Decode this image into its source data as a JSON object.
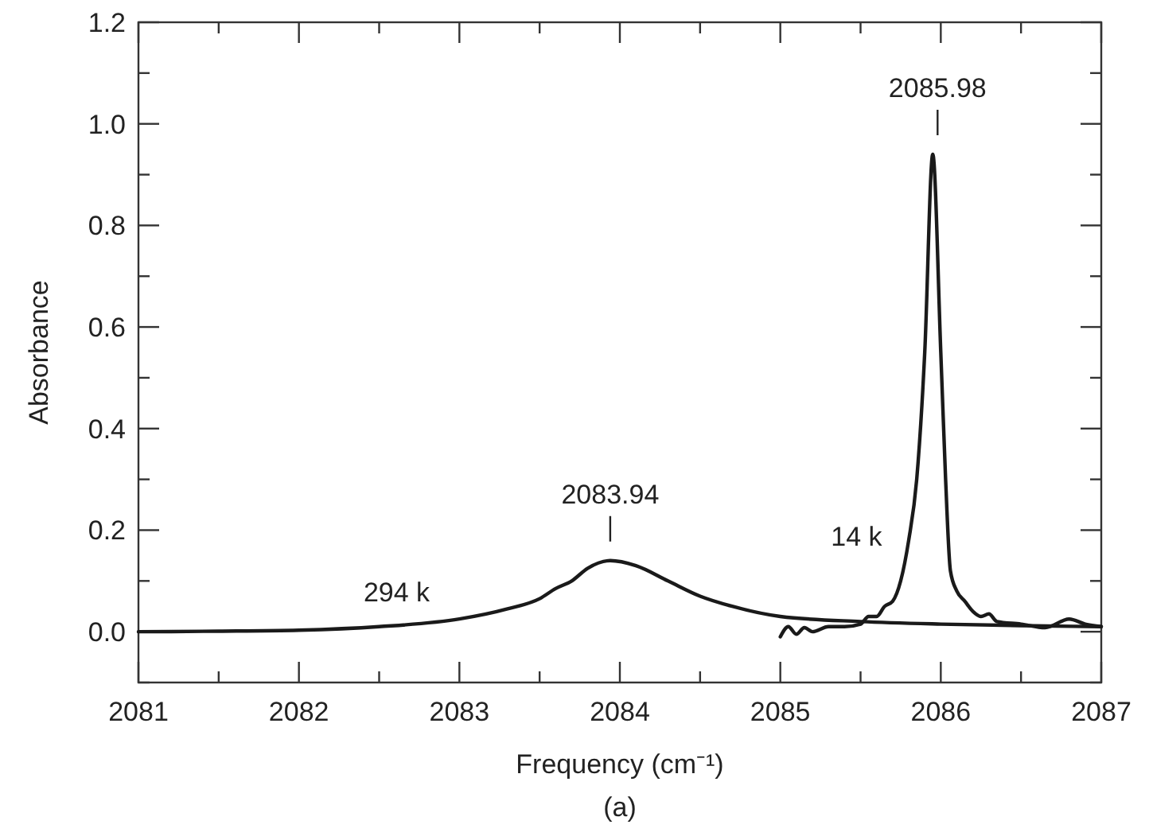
{
  "chart_data": {
    "type": "line",
    "xlabel": "Frequency (cm⁻¹)",
    "ylabel": "Absorbance",
    "xlim": [
      2081,
      2087
    ],
    "xticks": [
      2081,
      {
        "value": 2081.5,
        "label": null
      },
      2082,
      {
        "value": 2082.5,
        "label": null
      },
      2083,
      {
        "value": 2083.5,
        "label": null
      },
      2084,
      {
        "value": 2084.5,
        "label": null
      },
      2085,
      {
        "value": 2085.5,
        "label": null
      },
      2086,
      {
        "value": 2086.5,
        "label": null
      },
      2087
    ],
    "ylim": [
      -0.1,
      1.2
    ],
    "yticks": [
      {
        "value": -0.1,
        "label": null
      },
      "0.0",
      {
        "value": 0.1,
        "label": null
      },
      0.2,
      {
        "value": 0.3,
        "label": null
      },
      0.4,
      {
        "value": 0.5,
        "label": null
      },
      0.6,
      {
        "value": 0.7,
        "label": null
      },
      0.8,
      {
        "value": 0.9,
        "label": null
      },
      "1.0",
      {
        "value": 1.1,
        "label": null
      },
      1.2
    ],
    "marker": "none",
    "line_style": "solid",
    "series": [
      {
        "name": "294 k",
        "color": "#1a1a1a",
        "x": [
          2081,
          2081.5,
          2082,
          2082.5,
          2083,
          2083.3,
          2083.5,
          2083.6,
          2083.7,
          2083.8,
          2083.94,
          2084.1,
          2084.3,
          2084.5,
          2084.7,
          2085,
          2085.5,
          2086,
          2086.5,
          2087
        ],
        "values": [
          0.0,
          0.001,
          0.003,
          0.01,
          0.025,
          0.045,
          0.065,
          0.085,
          0.1,
          0.125,
          0.14,
          0.13,
          0.1,
          0.07,
          0.05,
          0.03,
          0.02,
          0.015,
          0.012,
          0.01
        ]
      },
      {
        "name": "14 k",
        "color": "#1a1a1a",
        "x": [
          2085,
          2085.05,
          2085.1,
          2085.15,
          2085.2,
          2085.3,
          2085.4,
          2085.5,
          2085.55,
          2085.6,
          2085.65,
          2085.7,
          2085.75,
          2085.8,
          2085.85,
          2085.9,
          2085.95,
          2086,
          2086.03,
          2086.06,
          2086.1,
          2086.15,
          2086.2,
          2086.25,
          2086.3,
          2086.35,
          2086.5,
          2086.65,
          2086.8,
          2086.9,
          2087
        ],
        "values": [
          -0.01,
          0.01,
          -0.005,
          0.008,
          0.0,
          0.01,
          0.01,
          0.015,
          0.03,
          0.03,
          0.05,
          0.06,
          0.1,
          0.18,
          0.3,
          0.55,
          0.94,
          0.55,
          0.3,
          0.12,
          0.08,
          0.06,
          0.04,
          0.03,
          0.035,
          0.02,
          0.015,
          0.008,
          0.025,
          0.015,
          0.01
        ]
      }
    ],
    "annotations": [
      {
        "text": "2083.94",
        "x": 2083.94,
        "y": 0.14
      },
      {
        "text": "2085.98",
        "x": 2085.98,
        "y": 0.94
      },
      "(a)"
    ]
  }
}
